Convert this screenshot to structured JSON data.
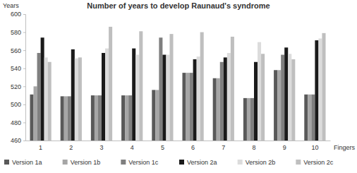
{
  "chart_data": {
    "type": "bar",
    "title": "Number of years to develop Raunaud's syndrome",
    "xlabel": "Fingers",
    "ylabel": "Years",
    "categories": [
      "1",
      "2",
      "3",
      "4",
      "5",
      "6",
      "7",
      "8",
      "9",
      "10"
    ],
    "series": [
      {
        "name": "Version 1a",
        "color": "#595959",
        "values": [
          511,
          509,
          510,
          510,
          516,
          535,
          529,
          507,
          538,
          511
        ]
      },
      {
        "name": "Version 1b",
        "color": "#a6a6a6",
        "values": [
          520,
          509,
          510,
          510,
          516,
          535,
          529,
          507,
          538,
          511
        ]
      },
      {
        "name": "Version 1c",
        "color": "#7f7f7f",
        "values": [
          557,
          509,
          510,
          510,
          574,
          535,
          547,
          507,
          555,
          511
        ]
      },
      {
        "name": "Version 2a",
        "color": "#1a1a1a",
        "values": [
          574,
          561,
          557,
          562,
          555,
          550,
          552,
          547,
          563,
          571
        ]
      },
      {
        "name": "Version 2b",
        "color": "#dcdcdc",
        "values": [
          552,
          551,
          562,
          555,
          555,
          553,
          557,
          569,
          556,
          573
        ]
      },
      {
        "name": "Version 2c",
        "color": "#bfbfbf",
        "values": [
          547,
          552,
          586,
          581,
          578,
          580,
          575,
          556,
          550,
          579
        ]
      }
    ],
    "ylim": [
      460,
      600
    ],
    "yticks": [
      460,
      480,
      500,
      520,
      540,
      560,
      580,
      600
    ],
    "grid": false,
    "legend": "bottom"
  }
}
